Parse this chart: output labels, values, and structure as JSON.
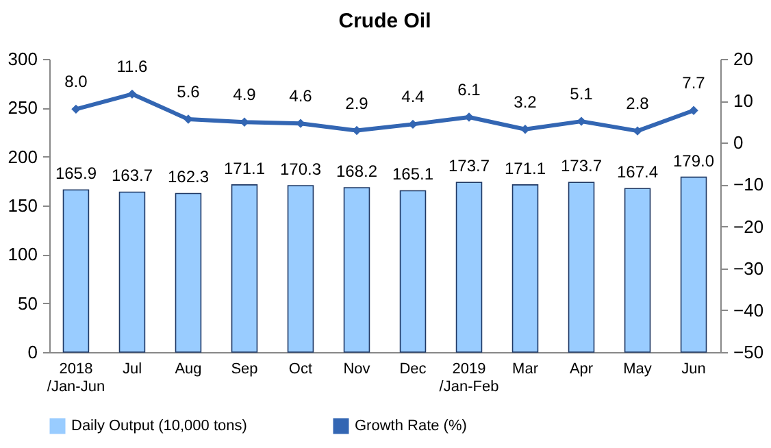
{
  "chart_data": {
    "type": "bar",
    "title": "Crude Oil",
    "categories": [
      "2018\n/Jan-Jun",
      "Jul",
      "Aug",
      "Sep",
      "Oct",
      "Nov",
      "Dec",
      "2019\n/Jan-Feb",
      "Mar",
      "Apr",
      "May",
      "Jun"
    ],
    "series": [
      {
        "name": "Daily Output (10,000 tons)",
        "color": "#99ccff",
        "values": [
          165.9,
          163.7,
          162.3,
          171.1,
          170.3,
          168.2,
          165.1,
          173.7,
          171.1,
          173.7,
          167.4,
          179.0
        ],
        "value_labels": [
          "165.9",
          "163.7",
          "162.3",
          "171.1",
          "170.3",
          "168.2",
          "165.1",
          "173.7",
          "171.1",
          "173.7",
          "167.4",
          "179.0"
        ]
      },
      {
        "name": "Growth Rate (%)",
        "type": "line",
        "axis": "y2",
        "color": "#3366b3",
        "values": [
          8.0,
          11.6,
          5.6,
          4.9,
          4.6,
          2.9,
          4.4,
          6.1,
          3.2,
          5.1,
          2.8,
          7.7
        ],
        "value_labels": [
          "8.0",
          "11.6",
          "5.6",
          "4.9",
          "4.6",
          "2.9",
          "4.4",
          "6.1",
          "3.2",
          "5.1",
          "2.8",
          "7.7"
        ]
      }
    ],
    "ylim": [
      0,
      300
    ],
    "yticks": [
      0,
      50,
      100,
      150,
      200,
      250,
      300
    ],
    "y2lim": [
      -50,
      20
    ],
    "y2ticks": [
      -50,
      -40,
      -30,
      -20,
      -10,
      0,
      10,
      20
    ],
    "grid": false,
    "legend": "bottom",
    "marker": "diamond",
    "line_style": "solid"
  }
}
